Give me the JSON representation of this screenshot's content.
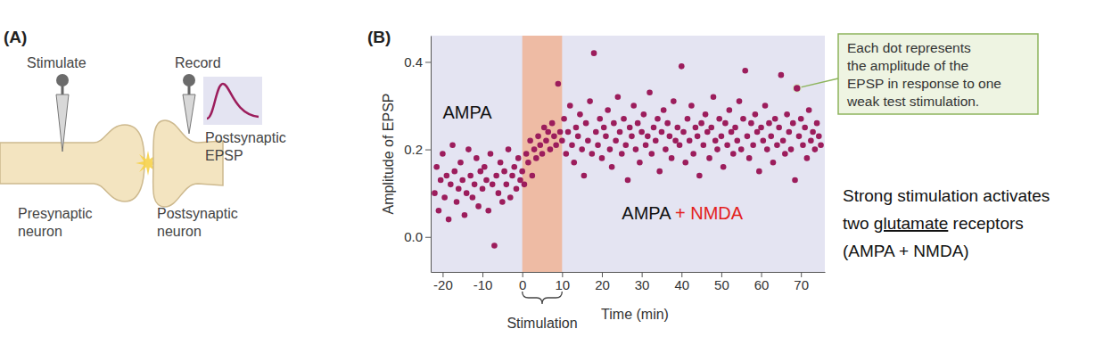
{
  "diagram": {
    "panel_label": "(A)",
    "stimulate": "Stimulate",
    "record": "Record",
    "epsp_label": [
      "Postsynaptic",
      "EPSP"
    ],
    "presynaptic": [
      "Presynaptic",
      "neuron"
    ],
    "postsynaptic": [
      "Postsynaptic",
      "neuron"
    ]
  },
  "chart_data": {
    "type": "scatter",
    "title": "(B)",
    "x_label": "Time (min)",
    "y_label": "Amplitude of EPSP",
    "color": "#9c1d5c",
    "marker": "circle",
    "xlim": [
      -23,
      76
    ],
    "xticks": [
      -20,
      -10,
      0,
      10,
      20,
      30,
      40,
      50,
      60,
      70
    ],
    "ylim": [
      -0.08,
      0.46
    ],
    "yticks": [
      {
        "value": 0,
        "label": "0.0"
      },
      0.2,
      0.4
    ],
    "shaded_region": {
      "x0": 0,
      "x1": 10,
      "label": "Stimulation",
      "color": "#f0b496"
    },
    "annotations": [
      {
        "parts": [
          {
            "text": "AMPA"
          }
        ],
        "x": -20,
        "y": 0.27
      },
      {
        "parts": [
          {
            "text": "AMPA "
          },
          {
            "text": "+ NMDA",
            "color": "#e3211c"
          }
        ],
        "x": 25,
        "y": 0.04
      }
    ],
    "callout": {
      "lines": [
        "Each dot represents",
        "the amplitude of the",
        "EPSP in response to one",
        "weak test stimulation."
      ],
      "x": 69,
      "y": 0.34
    },
    "x": [
      -22,
      -21.5,
      -21,
      -20.5,
      -20,
      -19.5,
      -19,
      -18.5,
      -18,
      -17.5,
      -17,
      -16.5,
      -16,
      -15.5,
      -15,
      -14.5,
      -14,
      -13.5,
      -13,
      -12.5,
      -12,
      -11.5,
      -11,
      -10.5,
      -10,
      -9.5,
      -9,
      -8.5,
      -8,
      -7.5,
      -7,
      -6.5,
      -6,
      -5.5,
      -5,
      -4.5,
      -4,
      -3.5,
      -3,
      -2.5,
      -2,
      -1.5,
      -1,
      -0.5,
      0,
      0.5,
      1,
      1.5,
      2,
      2.5,
      3,
      3.5,
      4,
      4.5,
      5,
      5.5,
      6,
      6.5,
      7,
      7.5,
      8,
      8.5,
      9,
      9.5,
      10,
      10.5,
      11,
      11.5,
      12,
      12.5,
      13,
      13.5,
      14,
      14.5,
      15,
      15.5,
      16,
      16.5,
      17,
      17.5,
      18,
      18.5,
      19,
      19.5,
      20,
      20.5,
      21,
      21.5,
      22,
      22.5,
      23,
      23.5,
      24,
      24.5,
      25,
      25.5,
      26,
      26.5,
      27,
      27.5,
      28,
      28.5,
      29,
      29.5,
      30,
      30.5,
      31,
      31.5,
      32,
      32.5,
      33,
      33.5,
      34,
      34.5,
      35,
      35.5,
      36,
      36.5,
      37,
      37.5,
      38,
      38.5,
      39,
      39.5,
      40,
      40.5,
      41,
      41.5,
      42,
      42.5,
      43,
      43.5,
      44,
      44.5,
      45,
      45.5,
      46,
      46.5,
      47,
      47.5,
      48,
      48.5,
      49,
      49.5,
      50,
      50.5,
      51,
      51.5,
      52,
      52.5,
      53,
      53.5,
      54,
      54.5,
      55,
      55.5,
      56,
      56.5,
      57,
      57.5,
      58,
      58.5,
      59,
      59.5,
      60,
      60.5,
      61,
      61.5,
      62,
      62.5,
      63,
      63.5,
      64,
      64.5,
      65,
      65.5,
      66,
      66.5,
      67,
      67.5,
      68,
      68.5,
      69,
      69.5,
      70,
      70.5,
      71,
      71.5,
      72,
      72.5,
      73,
      73.5,
      74,
      74.5,
      75
    ],
    "values": [
      0.1,
      0.16,
      0.06,
      0.13,
      0.19,
      0.09,
      0.14,
      0.04,
      0.12,
      0.21,
      0.15,
      0.08,
      0.11,
      0.17,
      0.13,
      0.05,
      0.1,
      0.2,
      0.14,
      0.09,
      0.12,
      0.18,
      0.07,
      0.15,
      0.11,
      0.16,
      0.13,
      0.06,
      0.19,
      0.12,
      -0.02,
      0.14,
      0.1,
      0.17,
      0.08,
      0.15,
      0.12,
      0.2,
      0.09,
      0.14,
      0.16,
      0.11,
      0.18,
      0.13,
      0.15,
      0.12,
      0.19,
      0.17,
      0.22,
      0.14,
      0.2,
      0.18,
      0.23,
      0.21,
      0.19,
      0.25,
      0.22,
      0.24,
      0.2,
      0.26,
      0.23,
      0.21,
      0.35,
      0.24,
      0.22,
      0.27,
      0.19,
      0.24,
      0.3,
      0.21,
      0.17,
      0.25,
      0.23,
      0.28,
      0.2,
      0.14,
      0.26,
      0.22,
      0.31,
      0.19,
      0.42,
      0.24,
      0.21,
      0.27,
      0.18,
      0.25,
      0.23,
      0.29,
      0.2,
      0.16,
      0.26,
      0.22,
      0.32,
      0.24,
      0.19,
      0.27,
      0.21,
      0.13,
      0.25,
      0.23,
      0.3,
      0.2,
      0.26,
      0.17,
      0.24,
      0.28,
      0.21,
      0.23,
      0.33,
      0.19,
      0.25,
      0.22,
      0.27,
      0.15,
      0.24,
      0.29,
      0.2,
      0.26,
      0.23,
      0.18,
      0.31,
      0.22,
      0.25,
      0.21,
      0.39,
      0.24,
      0.17,
      0.27,
      0.22,
      0.3,
      0.19,
      0.25,
      0.23,
      0.14,
      0.26,
      0.21,
      0.28,
      0.24,
      0.18,
      0.25,
      0.32,
      0.22,
      0.2,
      0.27,
      0.23,
      0.16,
      0.26,
      0.21,
      0.29,
      0.24,
      0.19,
      0.25,
      0.22,
      0.31,
      0.2,
      0.27,
      0.38,
      0.23,
      0.18,
      0.26,
      0.21,
      0.28,
      0.24,
      0.15,
      0.25,
      0.22,
      0.3,
      0.2,
      0.26,
      0.23,
      0.17,
      0.27,
      0.21,
      0.25,
      0.37,
      0.22,
      0.19,
      0.28,
      0.24,
      0.2,
      0.26,
      0.13,
      0.34,
      0.23,
      0.27,
      0.21,
      0.25,
      0.18,
      0.29,
      0.22,
      0.24,
      0.2,
      0.26,
      0.23,
      0.21
    ]
  },
  "side_note": {
    "lines": [
      [
        {
          "text": "Strong stimulation activates"
        }
      ],
      [
        {
          "text": "two "
        },
        {
          "text": "glutamate",
          "underline": true
        },
        {
          "text": " receptors"
        }
      ],
      [
        {
          "text": "(AMPA + NMDA)"
        }
      ]
    ]
  }
}
